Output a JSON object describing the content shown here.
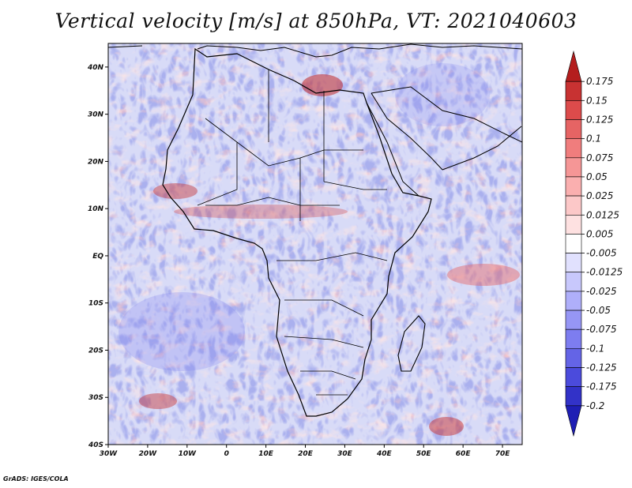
{
  "title": "Vertical velocity [m/s] at 850hPa, VT: 2021040603",
  "credit": "GrADS: IGES/COLA",
  "map": {
    "lon_range": [
      -30,
      75
    ],
    "lat_range": [
      -40,
      45
    ],
    "lon_ticks": [
      {
        "value": -30,
        "label": "30W"
      },
      {
        "value": -20,
        "label": "20W"
      },
      {
        "value": -10,
        "label": "10W"
      },
      {
        "value": 0,
        "label": "0"
      },
      {
        "value": 10,
        "label": "10E"
      },
      {
        "value": 20,
        "label": "20E"
      },
      {
        "value": 30,
        "label": "30E"
      },
      {
        "value": 40,
        "label": "40E"
      },
      {
        "value": 50,
        "label": "50E"
      },
      {
        "value": 60,
        "label": "60E"
      },
      {
        "value": 70,
        "label": "70E"
      }
    ],
    "lat_ticks": [
      {
        "value": 40,
        "label": "40N"
      },
      {
        "value": 30,
        "label": "30N"
      },
      {
        "value": 20,
        "label": "20N"
      },
      {
        "value": 10,
        "label": "10N"
      },
      {
        "value": 0,
        "label": "EQ"
      },
      {
        "value": -10,
        "label": "10S"
      },
      {
        "value": -20,
        "label": "20S"
      },
      {
        "value": -30,
        "label": "30S"
      },
      {
        "value": -40,
        "label": "40S"
      }
    ]
  },
  "colorbar": {
    "labels": [
      "0.175",
      "0.15",
      "0.125",
      "0.1",
      "0.075",
      "0.05",
      "0.025",
      "0.0125",
      "0.005",
      "-0.005",
      "-0.0125",
      "-0.025",
      "-0.05",
      "-0.075",
      "-0.1",
      "-0.125",
      "-0.175",
      "-0.2"
    ],
    "colors": [
      "#b41e1e",
      "#c83232",
      "#dc4b4b",
      "#e66464",
      "#f07d7d",
      "#f59696",
      "#faafaf",
      "#fcc8c8",
      "#fee1e1",
      "#ffffff",
      "#e1e1fe",
      "#c8c8fc",
      "#afaffa",
      "#9696f5",
      "#7d7df0",
      "#6464e6",
      "#4b4bdc",
      "#3232c8",
      "#1e1eb4"
    ]
  }
}
